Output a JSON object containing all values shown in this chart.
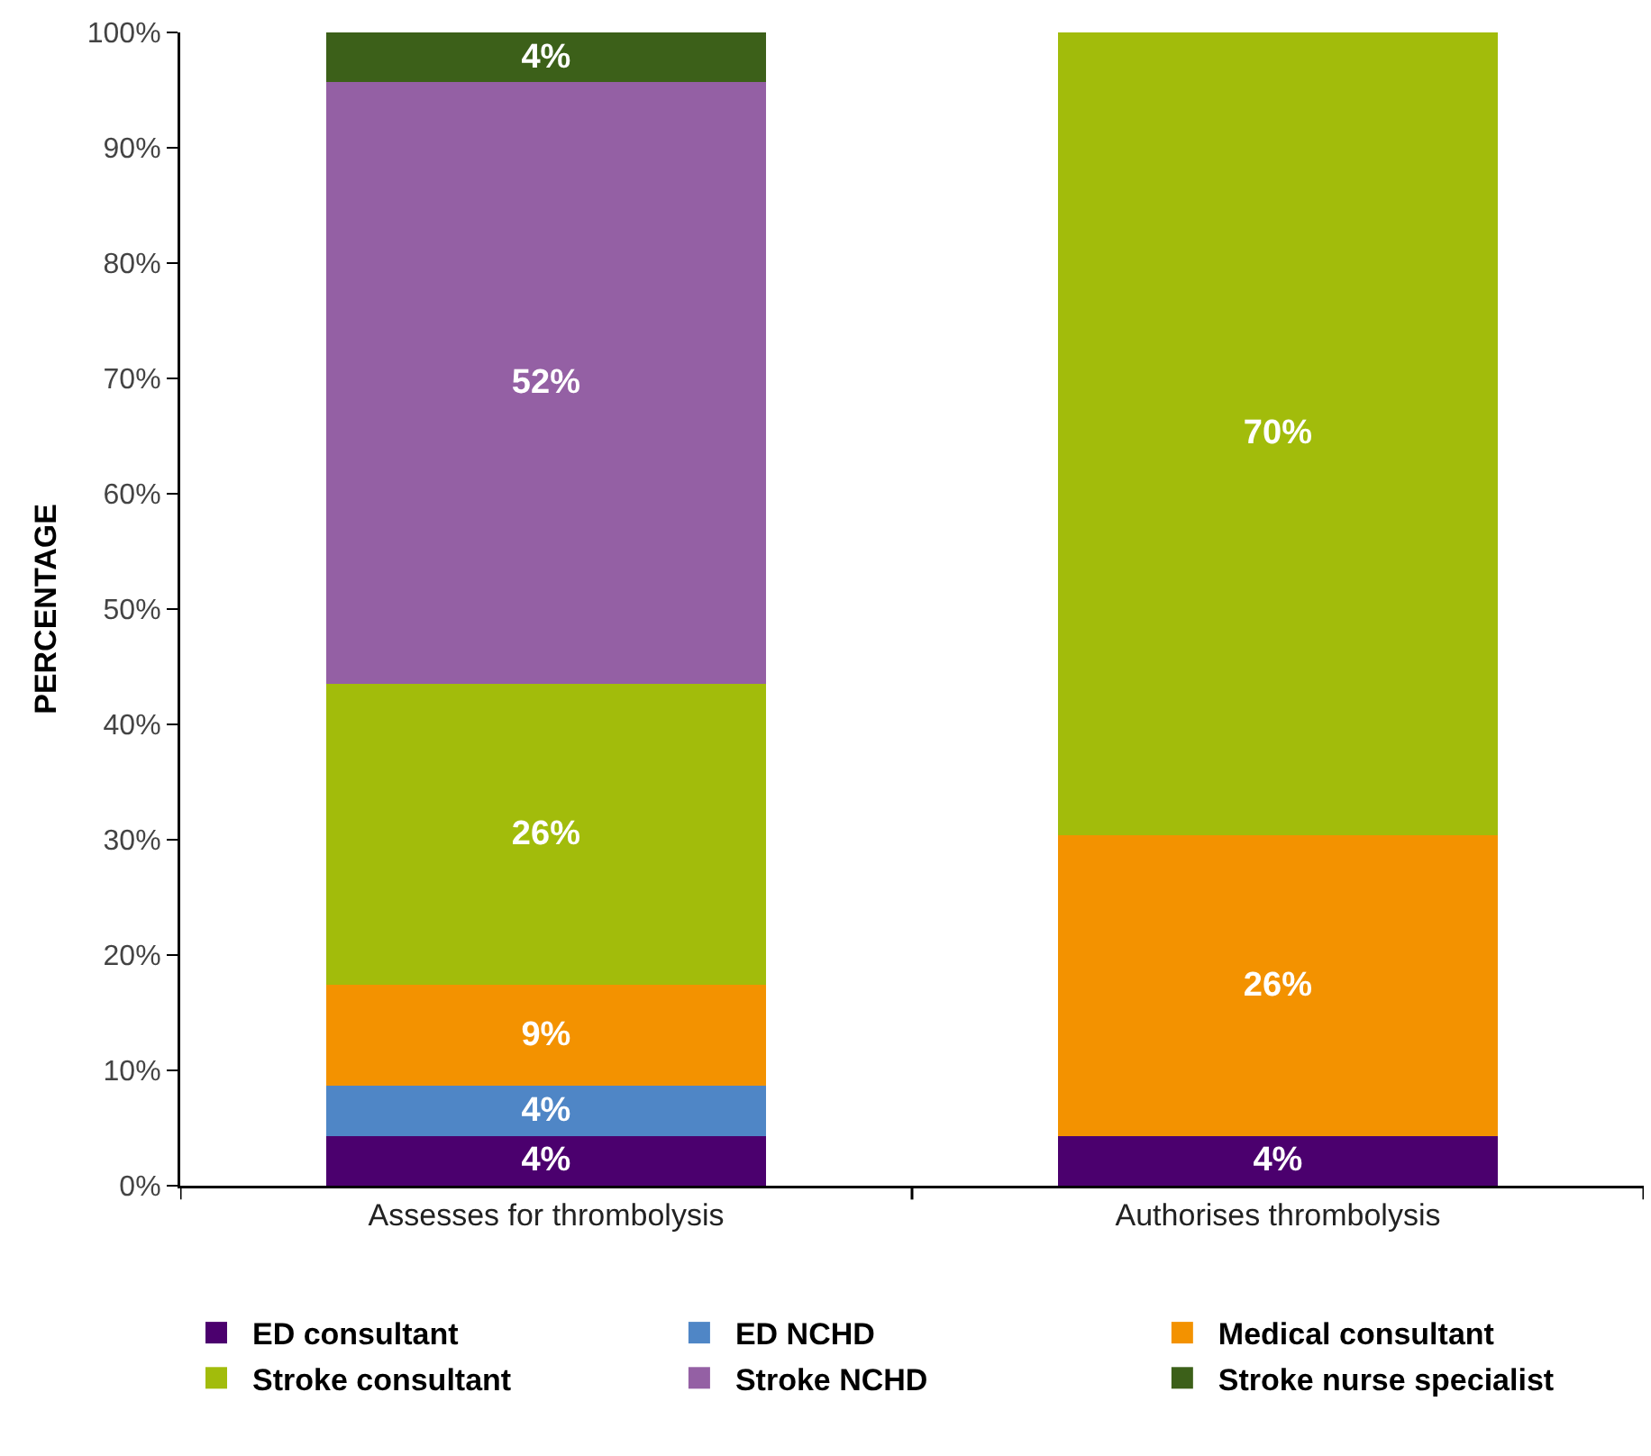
{
  "chart_data": {
    "type": "bar",
    "stacked": true,
    "ylabel": "PERCENTAGE",
    "categories": [
      "Assesses for thrombolysis",
      "Authorises thrombolysis"
    ],
    "ylim": [
      0,
      100
    ],
    "yticks": [
      {
        "value": 0,
        "label": "0%"
      },
      {
        "value": 10,
        "label": "10%"
      },
      {
        "value": 20,
        "label": "20%"
      },
      {
        "value": 30,
        "label": "30%"
      },
      {
        "value": 40,
        "label": "40%"
      },
      {
        "value": 50,
        "label": "50%"
      },
      {
        "value": 60,
        "label": "60%"
      },
      {
        "value": 70,
        "label": "70%"
      },
      {
        "value": 80,
        "label": "80%"
      },
      {
        "value": 90,
        "label": "90%"
      },
      {
        "value": 100,
        "label": "100%"
      }
    ],
    "grid": false,
    "legend": "bottom",
    "series": [
      {
        "name": "ED consultant",
        "color": "#4b006e",
        "values": [
          4.3,
          4.3
        ],
        "value_labels": [
          "4%",
          "4%"
        ]
      },
      {
        "name": "ED NCHD",
        "color": "#4f86c6",
        "values": [
          4.4,
          null
        ],
        "value_labels": [
          "4%",
          null
        ]
      },
      {
        "name": "Medical consultant",
        "color": "#f39200",
        "values": [
          8.7,
          26.1
        ],
        "value_labels": [
          "9%",
          "26%"
        ]
      },
      {
        "name": "Stroke consultant",
        "color": "#a2bc0b",
        "values": [
          26.1,
          69.6
        ],
        "value_labels": [
          "26%",
          "70%"
        ]
      },
      {
        "name": "Stroke NCHD",
        "color": "#9460a4",
        "values": [
          52.2,
          null
        ],
        "value_labels": [
          "52%",
          null
        ]
      },
      {
        "name": "Stroke nurse specialist",
        "color": "#3c6019",
        "values": [
          4.3,
          null
        ],
        "value_labels": [
          "4%",
          null
        ]
      }
    ]
  }
}
